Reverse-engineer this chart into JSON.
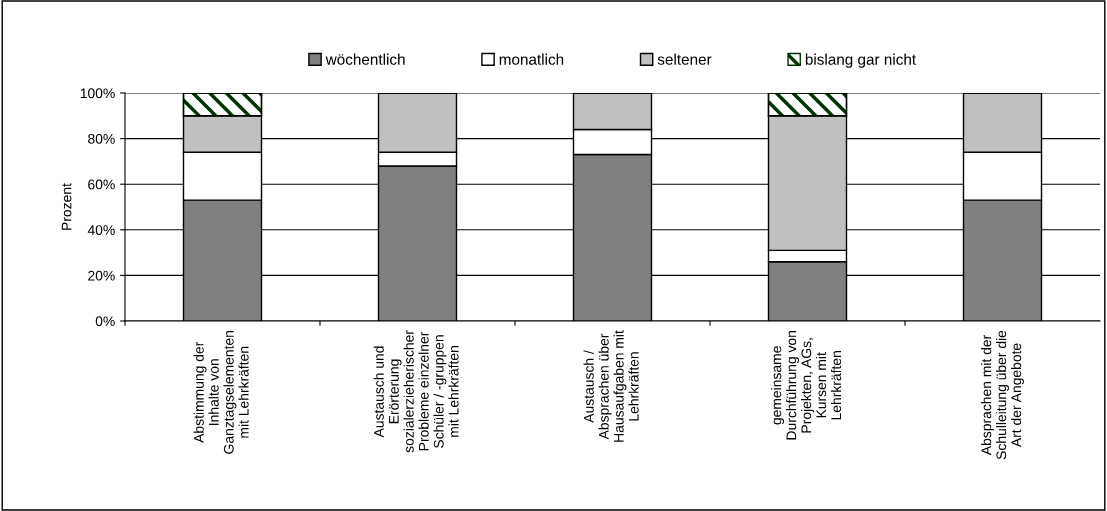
{
  "chart_data": {
    "type": "bar",
    "stacked": true,
    "ylabel": "Prozent",
    "categories": [
      "Abstimmung der\nInhalte von\nGanztagselementen\nmit Lehrkräften",
      "Austausch und\nErörterung\nsozialerzieherischer\nProbleme einzelner\nSchüler / -gruppen\nmit Lehrkräften",
      "Austausch /\nAbsprachen über\nHausaufgaben mit\nLehrkräften",
      "gemeinsame\nDurchführung von\nProjekten, AGs,\nKursen mit\nLehrkräften",
      "Absprachen mit der\nSchulleitung über die\nArt der Angebote"
    ],
    "series": [
      {
        "name": "wöchentlich",
        "color": "#808080",
        "values": [
          53,
          68,
          73,
          26,
          53
        ]
      },
      {
        "name": "monatlich",
        "color": "#ffffff",
        "values": [
          21,
          6,
          11,
          5,
          21
        ]
      },
      {
        "name": "seltener",
        "color": "#c0c0c0",
        "values": [
          16,
          26,
          16,
          59,
          26
        ]
      },
      {
        "name": "bislang gar nicht",
        "color": "#003300",
        "values": [
          10,
          0,
          0,
          10,
          0
        ]
      }
    ],
    "ylim": [
      0,
      100
    ],
    "yticks": [
      {
        "value": 0,
        "label": "0%"
      },
      {
        "value": 20,
        "label": "20%"
      },
      {
        "value": 40,
        "label": "40%"
      },
      {
        "value": 60,
        "label": "60%"
      },
      {
        "value": 80,
        "label": "80%"
      },
      {
        "value": 100,
        "label": "100%"
      }
    ],
    "grid": "y",
    "legend": "top"
  }
}
